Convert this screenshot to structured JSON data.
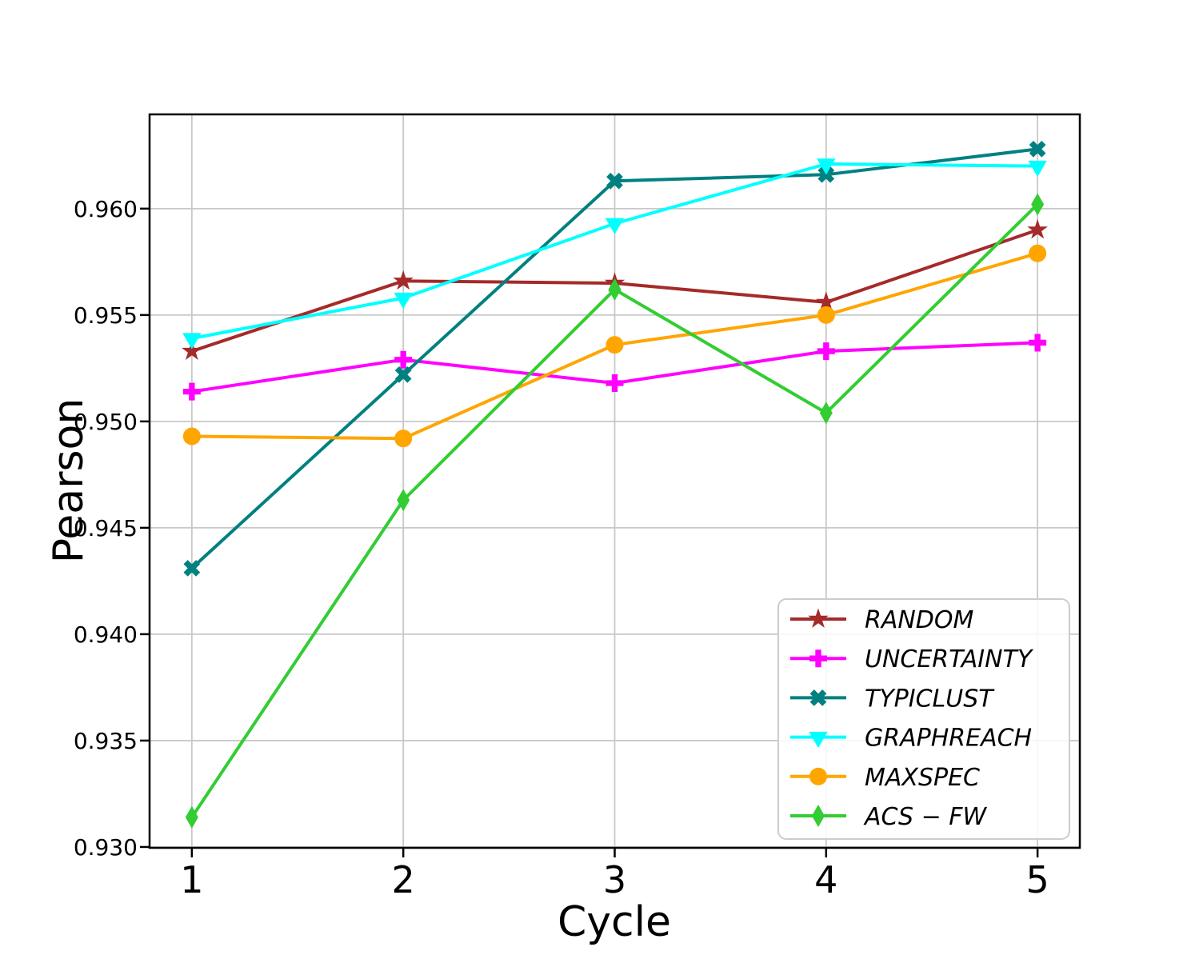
{
  "figure": {
    "background": "#ffffff"
  },
  "chart_data": {
    "type": "line",
    "title": "",
    "xlabel": "Cycle",
    "ylabel": "Pearson",
    "x": [
      1,
      2,
      3,
      4,
      5
    ],
    "xlim": [
      0.8,
      5.2
    ],
    "ylim": [
      0.92996,
      0.96443
    ],
    "xticks": [
      "1",
      "2",
      "3",
      "4",
      "5"
    ],
    "yticks": [
      0.93,
      0.935,
      0.94,
      0.945,
      0.95,
      0.955,
      0.96
    ],
    "ytick_decimals": 3,
    "grid": true,
    "grid_color": "#c8c8c8",
    "spine_color": "#000000",
    "legend_position": "lower right",
    "series": [
      {
        "name": "RANDOM",
        "color": "#A52A2A",
        "marker": "star",
        "values": [
          0.9533,
          0.9566,
          0.9565,
          0.9556,
          0.959
        ]
      },
      {
        "name": "UNCERTAINTY",
        "color": "#FF00FF",
        "marker": "plus",
        "values": [
          0.9514,
          0.9529,
          0.9518,
          0.9533,
          0.9537
        ]
      },
      {
        "name": "TYPICLUST",
        "color": "#008080",
        "marker": "x",
        "values": [
          0.9431,
          0.9522,
          0.9613,
          0.9616,
          0.9628
        ]
      },
      {
        "name": "GRAPHREACH",
        "color": "#00FFFF",
        "marker": "triangle-down",
        "values": [
          0.9539,
          0.9558,
          0.9593,
          0.9621,
          0.962
        ]
      },
      {
        "name": "MAXSPEC",
        "color": "#FFA500",
        "marker": "circle",
        "values": [
          0.9493,
          0.9492,
          0.9536,
          0.955,
          0.9579
        ]
      },
      {
        "name": "ACS − FW",
        "color": "#32CD32",
        "marker": "diamond",
        "values": [
          0.9314,
          0.9463,
          0.9562,
          0.9504,
          0.9602
        ]
      }
    ]
  }
}
